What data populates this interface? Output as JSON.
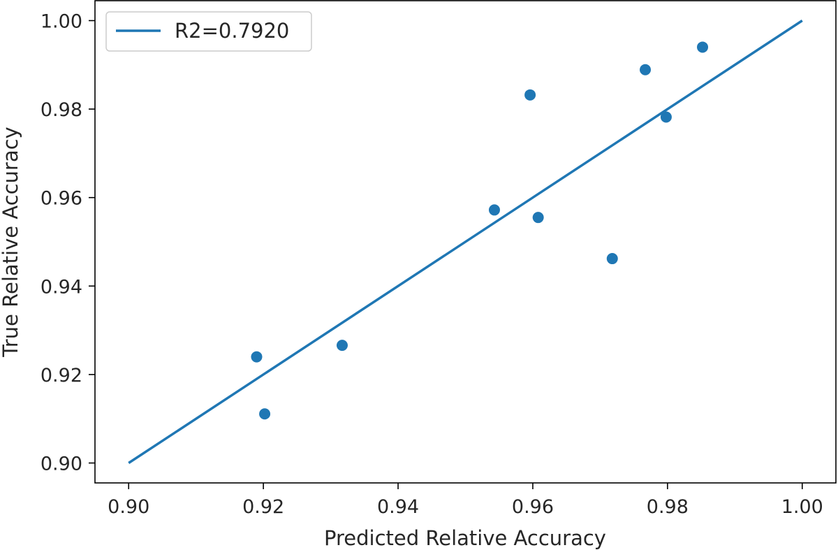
{
  "chart_data": {
    "type": "scatter",
    "xlabel": "Predicted Relative Accuracy",
    "ylabel": "True Relative Accuracy",
    "xlim": [
      0.895,
      1.005
    ],
    "ylim": [
      0.8955,
      1.0045
    ],
    "xticks": [
      "0.90",
      "0.92",
      "0.94",
      "0.96",
      "0.98",
      "1.00"
    ],
    "yticks": [
      "0.90",
      "0.92",
      "0.94",
      "0.96",
      "0.98",
      "1.00"
    ],
    "grid": false,
    "legend": {
      "position": "top-left",
      "entries": [
        "R2=0.7920"
      ]
    },
    "series": [
      {
        "type": "line",
        "name": "R2=0.7920",
        "color": "#1f77b4",
        "x": [
          0.9,
          1.0
        ],
        "y": [
          0.9,
          1.0
        ]
      },
      {
        "type": "scatter",
        "color": "#1f77b4",
        "x": [
          0.919,
          0.9202,
          0.9317,
          0.9543,
          0.9596,
          0.9608,
          0.9718,
          0.9767,
          0.9798,
          0.9852
        ],
        "y": [
          0.924,
          0.9111,
          0.9266,
          0.9572,
          0.9832,
          0.9555,
          0.9462,
          0.9889,
          0.9782,
          0.994
        ]
      }
    ]
  }
}
